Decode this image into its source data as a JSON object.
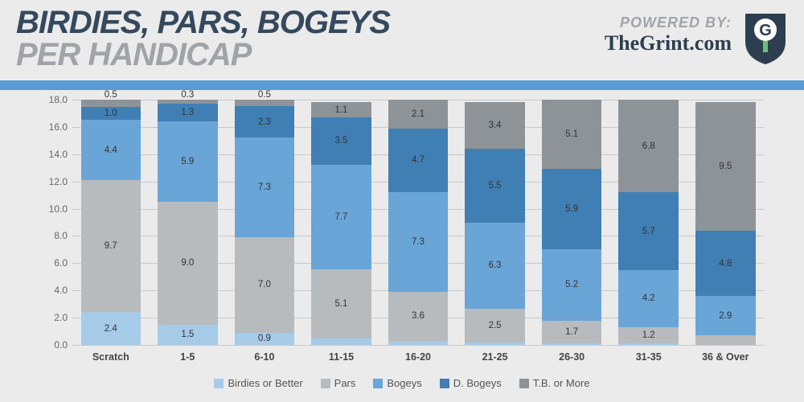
{
  "header": {
    "title_top": "BIRDIES, PARS, BOGEYS",
    "title_bottom": "PER HANDICAP",
    "powered_by": "POWERED BY:",
    "site": "TheGrint.com"
  },
  "accent_color": "#5b9bd5",
  "chart": {
    "type": "stacked-bar",
    "ylim": [
      0,
      18
    ],
    "ytick_step": 2,
    "background": "#ebebeb",
    "grid_color": "#c9c9c9",
    "label_fontsize": 12,
    "categories": [
      "Scratch",
      "1-5",
      "6-10",
      "11-15",
      "16-20",
      "21-25",
      "26-30",
      "31-35",
      "36 & Over"
    ],
    "series": [
      {
        "name": "Birdies or Better",
        "color": "#a6cbe9"
      },
      {
        "name": "Pars",
        "color": "#b8bbbd"
      },
      {
        "name": "Bogeys",
        "color": "#6aa5d8"
      },
      {
        "name": "D. Bogeys",
        "color": "#3f7fb3"
      },
      {
        "name": "T.B. or More",
        "color": "#8d9397"
      }
    ],
    "data": [
      [
        2.4,
        9.7,
        4.4,
        1.0,
        0.5
      ],
      [
        1.5,
        9.0,
        5.9,
        1.3,
        0.3
      ],
      [
        0.9,
        7.0,
        7.3,
        2.3,
        0.5
      ],
      [
        0.5,
        5.1,
        7.7,
        3.5,
        1.1
      ],
      [
        0.3,
        3.6,
        7.3,
        4.7,
        2.1
      ],
      [
        0.2,
        2.5,
        6.3,
        5.5,
        3.4
      ],
      [
        0.1,
        1.7,
        5.2,
        5.9,
        5.1
      ],
      [
        0.1,
        1.2,
        4.2,
        5.7,
        6.8
      ],
      [
        0.0,
        0.7,
        2.9,
        4.8,
        9.5
      ]
    ],
    "show_zero_labels": false
  },
  "logo": {
    "shield_fill": "#2d3e50",
    "ring_fill": "#ffffff",
    "letter": "G",
    "letter_color": "#2d3e50",
    "tee_color": "#6fbf73"
  }
}
